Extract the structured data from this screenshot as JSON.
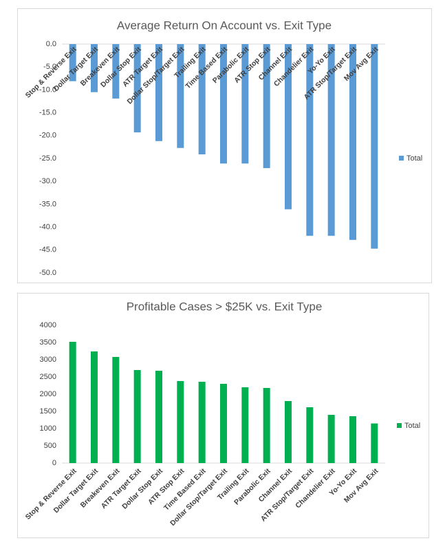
{
  "chart_data": [
    {
      "type": "bar",
      "title": "Average Return On Account vs. Exit Type",
      "categories": [
        "Stop & Reverse Exit",
        "Dollar Target Exit",
        "Breakeven Exit",
        "Dollar Stop Exit",
        "ATR Target Exit",
        "Dollar Stop/Target Exit",
        "Trailing Exit",
        "Time Based Exit",
        "Parabolic Exit",
        "ATR Stop Exit",
        "Channel Exit",
        "Chandelier Exit",
        "Yo-Yo Exit",
        "ATR Stop/Target Exit",
        "Mov Avg Exit"
      ],
      "series": [
        {
          "name": "Total",
          "color": "#5b9bd5",
          "values": [
            -8.1,
            -10.5,
            -11.9,
            -19.3,
            -21.2,
            -22.7,
            -24.1,
            -26.1,
            -26.1,
            -27.1,
            -36.1,
            -41.9,
            -41.9,
            -42.8,
            -44.7
          ]
        }
      ],
      "ylim": [
        -50,
        0
      ],
      "yticks": [
        {
          "value": 0,
          "label": "0.0"
        },
        {
          "value": -5,
          "label": "-5.0"
        },
        {
          "value": -10,
          "label": "-10.0"
        },
        {
          "value": -15,
          "label": "-15.0"
        },
        {
          "value": -20,
          "label": "-20.0"
        },
        {
          "value": -25,
          "label": "-25.0"
        },
        {
          "value": -30,
          "label": "-30.0"
        },
        {
          "value": -35,
          "label": "-35.0"
        },
        {
          "value": -40,
          "label": "-40.0"
        },
        {
          "value": -45,
          "label": "-45.0"
        },
        {
          "value": -50,
          "label": "-50.0"
        }
      ],
      "grid": false,
      "legend": "right"
    },
    {
      "type": "bar",
      "title": "Profitable Cases > $25K vs. Exit Type",
      "categories": [
        "Stop & Reverse Exit",
        "Dollar Target Exit",
        "Breakeven Exit",
        "ATR Target Exit",
        "Dollar Stop Exit",
        "ATR Stop Exit",
        "Time Based Exit",
        "Dollar Stop/Target Exit",
        "Trailing Exit",
        "Parabolic Exit",
        "Channel Exit",
        "ATR Stop/Target Exit",
        "Chandelier Exit",
        "Yo-Yo Exit",
        "Mov Avg Exit"
      ],
      "series": [
        {
          "name": "Total",
          "color": "#00b050",
          "values": [
            3520,
            3240,
            3080,
            2700,
            2680,
            2380,
            2360,
            2300,
            2200,
            2180,
            1800,
            1620,
            1400,
            1360,
            1150
          ]
        }
      ],
      "ylim": [
        0,
        4000
      ],
      "yticks": [
        0,
        500,
        1000,
        1500,
        2000,
        2500,
        3000,
        3500,
        4000
      ],
      "grid": false,
      "legend": "right"
    }
  ]
}
